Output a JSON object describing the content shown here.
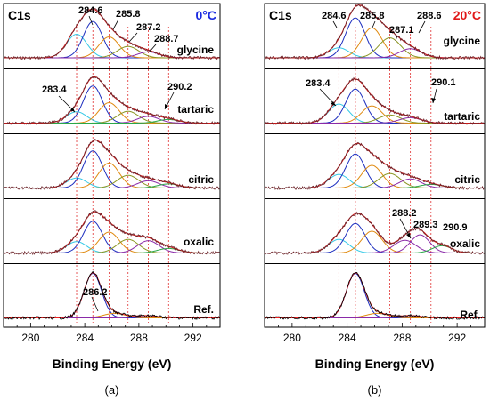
{
  "figure": {
    "xlabel": "Binding Energy (eV)",
    "x_ticks": [
      280,
      284,
      288,
      292
    ],
    "xlim": [
      278,
      294
    ],
    "colors": {
      "data_line": "#6b2228",
      "fit_envelope": "#d11818",
      "component_283_4": "#35c9e6",
      "component_284_6": "#1e2fbf",
      "component_285_8": "#e08a10",
      "component_287_2": "#8a9520",
      "component_288_7": "#8a2aa8",
      "component_290": "#2aa848",
      "ref_line": "#f02020",
      "temp_a": "#1a2ae0",
      "temp_b": "#e01818"
    }
  },
  "chart_data": [
    {
      "type": "line",
      "panel_label": "(a)",
      "core_level": "C1s",
      "temperature": "0°C",
      "xlabel": "Binding Energy (eV)",
      "xlim": [
        278,
        294
      ],
      "x_ticks": [
        280,
        284,
        288,
        292
      ],
      "reference_lines_eV": [
        283.4,
        284.6,
        285.8,
        287.2,
        288.7,
        290.2
      ],
      "subpanels": [
        {
          "name": "glycine",
          "annotations": [
            "284.6",
            "285.8",
            "287.2",
            "288.7"
          ],
          "components": [
            {
              "center": 283.4,
              "amp": 0.52,
              "sigma": 0.75
            },
            {
              "center": 284.6,
              "amp": 0.8,
              "sigma": 0.7
            },
            {
              "center": 285.8,
              "amp": 0.46,
              "sigma": 0.75
            },
            {
              "center": 287.2,
              "amp": 0.25,
              "sigma": 0.8
            },
            {
              "center": 288.7,
              "amp": 0.13,
              "sigma": 0.8
            }
          ]
        },
        {
          "name": "tartaric",
          "annotations": [
            "283.4",
            "290.2"
          ],
          "components": [
            {
              "center": 283.4,
              "amp": 0.25,
              "sigma": 0.75
            },
            {
              "center": 284.6,
              "amp": 0.82,
              "sigma": 0.7
            },
            {
              "center": 285.8,
              "amp": 0.45,
              "sigma": 0.75
            },
            {
              "center": 287.2,
              "amp": 0.26,
              "sigma": 0.8
            },
            {
              "center": 288.7,
              "amp": 0.15,
              "sigma": 0.8
            },
            {
              "center": 290.2,
              "amp": 0.08,
              "sigma": 0.8
            }
          ]
        },
        {
          "name": "citric",
          "annotations": [],
          "components": [
            {
              "center": 283.4,
              "amp": 0.22,
              "sigma": 0.75
            },
            {
              "center": 284.6,
              "amp": 0.82,
              "sigma": 0.7
            },
            {
              "center": 285.8,
              "amp": 0.55,
              "sigma": 0.75
            },
            {
              "center": 287.2,
              "amp": 0.28,
              "sigma": 0.8
            },
            {
              "center": 288.7,
              "amp": 0.16,
              "sigma": 0.8
            },
            {
              "center": 290.2,
              "amp": 0.09,
              "sigma": 0.8
            }
          ]
        },
        {
          "name": "oxalic",
          "annotations": [],
          "components": [
            {
              "center": 283.4,
              "amp": 0.25,
              "sigma": 0.75
            },
            {
              "center": 284.6,
              "amp": 0.7,
              "sigma": 0.7
            },
            {
              "center": 285.8,
              "amp": 0.46,
              "sigma": 0.75
            },
            {
              "center": 287.2,
              "amp": 0.3,
              "sigma": 0.8
            },
            {
              "center": 288.7,
              "amp": 0.27,
              "sigma": 0.8
            },
            {
              "center": 290.2,
              "amp": 0.1,
              "sigma": 0.8
            }
          ]
        },
        {
          "name": "Ref.",
          "annotations": [
            "286.2"
          ],
          "components": [
            {
              "center": 284.6,
              "amp": 0.98,
              "sigma": 0.65
            },
            {
              "center": 286.2,
              "amp": 0.1,
              "sigma": 0.8
            },
            {
              "center": 288.6,
              "amp": 0.05,
              "sigma": 0.8
            }
          ]
        }
      ]
    },
    {
      "type": "line",
      "panel_label": "(b)",
      "core_level": "C1s",
      "temperature": "20°C",
      "xlabel": "Binding Energy (eV)",
      "xlim": [
        278,
        294
      ],
      "x_ticks": [
        280,
        284,
        288,
        292
      ],
      "reference_lines_eV": [
        283.4,
        284.6,
        285.8,
        287.1,
        288.6,
        290.1
      ],
      "subpanels": [
        {
          "name": "glycine",
          "annotations": [
            "284.6",
            "285.8",
            "287.1",
            "288.6"
          ],
          "components": [
            {
              "center": 283.4,
              "amp": 0.22,
              "sigma": 0.75
            },
            {
              "center": 284.6,
              "amp": 0.88,
              "sigma": 0.7
            },
            {
              "center": 285.8,
              "amp": 0.66,
              "sigma": 0.75
            },
            {
              "center": 287.1,
              "amp": 0.44,
              "sigma": 0.8
            },
            {
              "center": 288.6,
              "amp": 0.2,
              "sigma": 0.8
            }
          ]
        },
        {
          "name": "tartaric",
          "annotations": [
            "283.4",
            "290.1"
          ],
          "components": [
            {
              "center": 283.4,
              "amp": 0.42,
              "sigma": 0.75
            },
            {
              "center": 284.6,
              "amp": 0.75,
              "sigma": 0.7
            },
            {
              "center": 285.8,
              "amp": 0.38,
              "sigma": 0.75
            },
            {
              "center": 287.1,
              "amp": 0.18,
              "sigma": 0.8
            },
            {
              "center": 288.6,
              "amp": 0.12,
              "sigma": 0.8
            }
          ]
        },
        {
          "name": "citric",
          "annotations": [],
          "components": [
            {
              "center": 283.4,
              "amp": 0.3,
              "sigma": 0.75
            },
            {
              "center": 284.6,
              "amp": 0.75,
              "sigma": 0.7
            },
            {
              "center": 285.8,
              "amp": 0.5,
              "sigma": 0.75
            },
            {
              "center": 287.1,
              "amp": 0.32,
              "sigma": 0.8
            },
            {
              "center": 288.6,
              "amp": 0.2,
              "sigma": 0.8
            },
            {
              "center": 290.1,
              "amp": 0.08,
              "sigma": 0.8
            }
          ]
        },
        {
          "name": "oxalic",
          "annotations": [
            "288.2",
            "289.3",
            "290.9"
          ],
          "components": [
            {
              "center": 283.4,
              "amp": 0.3,
              "sigma": 0.75
            },
            {
              "center": 284.6,
              "amp": 0.65,
              "sigma": 0.7
            },
            {
              "center": 285.8,
              "amp": 0.48,
              "sigma": 0.75
            },
            {
              "center": 288.2,
              "amp": 0.28,
              "sigma": 0.8
            },
            {
              "center": 289.3,
              "amp": 0.4,
              "sigma": 0.7
            },
            {
              "center": 290.9,
              "amp": 0.16,
              "sigma": 0.7
            }
          ]
        },
        {
          "name": "Ref.",
          "annotations": [],
          "components": [
            {
              "center": 284.6,
              "amp": 0.98,
              "sigma": 0.65
            },
            {
              "center": 286.2,
              "amp": 0.1,
              "sigma": 0.8
            },
            {
              "center": 288.6,
              "amp": 0.05,
              "sigma": 0.8
            }
          ]
        }
      ]
    }
  ]
}
